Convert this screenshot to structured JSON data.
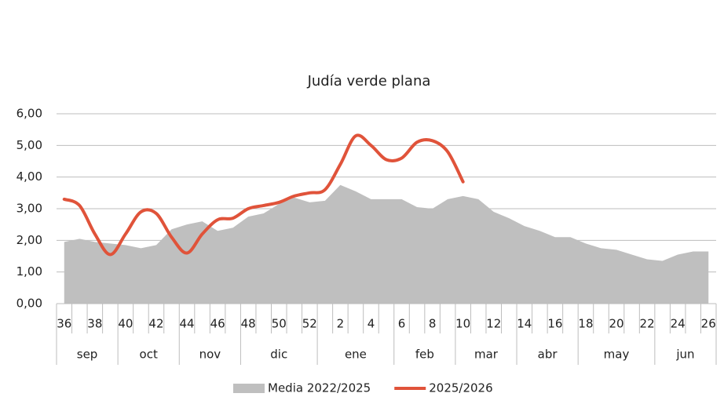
{
  "chart_data": {
    "type": "area_line",
    "title": "Judía verde plana",
    "categories": [
      "36",
      null,
      "38",
      null,
      "40",
      null,
      "42",
      null,
      "44",
      null,
      "46",
      null,
      "48",
      null,
      "50",
      null,
      "52",
      null,
      "2",
      null,
      "4",
      null,
      "6",
      null,
      "8",
      null,
      "10",
      null,
      "12",
      null,
      "14",
      null,
      "16",
      null,
      "18",
      null,
      "20",
      null,
      "22",
      null,
      "24",
      null,
      "26"
    ],
    "month_categories": [
      "sep",
      null,
      null,
      null,
      "oct",
      null,
      null,
      null,
      "nov",
      null,
      null,
      null,
      "dic",
      null,
      null,
      null,
      null,
      "ene",
      null,
      null,
      null,
      null,
      "feb",
      null,
      null,
      null,
      "mar",
      null,
      null,
      null,
      "abr",
      null,
      null,
      null,
      "may",
      null,
      null,
      null,
      null,
      "jun",
      null,
      null,
      null
    ],
    "series": [
      {
        "name": "Media 2022/2025",
        "type": "area",
        "color": "#bfbfbf",
        "values": [
          1.95,
          2.05,
          1.95,
          1.9,
          1.85,
          1.75,
          1.85,
          2.35,
          2.5,
          2.6,
          2.3,
          2.4,
          2.75,
          2.85,
          3.15,
          3.35,
          3.2,
          3.25,
          3.75,
          3.55,
          3.3,
          3.3,
          3.3,
          3.05,
          3.0,
          3.3,
          3.4,
          3.3,
          2.9,
          2.7,
          2.45,
          2.3,
          2.1,
          2.1,
          1.9,
          1.75,
          1.7,
          1.55,
          1.4,
          1.35,
          1.55,
          1.65,
          1.65
        ]
      },
      {
        "name": "2025/2026",
        "type": "line",
        "color": "#e0533a",
        "values": [
          3.3,
          3.1,
          2.2,
          1.55,
          2.2,
          2.9,
          2.85,
          2.1,
          1.6,
          2.2,
          2.65,
          2.7,
          3.0,
          3.1,
          3.2,
          3.4,
          3.5,
          3.6,
          4.4,
          5.3,
          5.0,
          4.55,
          4.6,
          5.1,
          5.15,
          4.8,
          3.85,
          null,
          null,
          null,
          null,
          null,
          null,
          null,
          null,
          null,
          null,
          null,
          null,
          null,
          null,
          null,
          null
        ]
      }
    ],
    "ylim": [
      0,
      6
    ],
    "yticks": [
      {
        "value": 0,
        "label": "0,00"
      },
      {
        "value": 1,
        "label": "1,00"
      },
      {
        "value": 2,
        "label": "2,00"
      },
      {
        "value": 3,
        "label": "3,00"
      },
      {
        "value": 4,
        "label": "4,00"
      },
      {
        "value": 5,
        "label": "5,00"
      },
      {
        "value": 6,
        "label": "6,00"
      }
    ],
    "grid": true,
    "legend": "bottom"
  }
}
